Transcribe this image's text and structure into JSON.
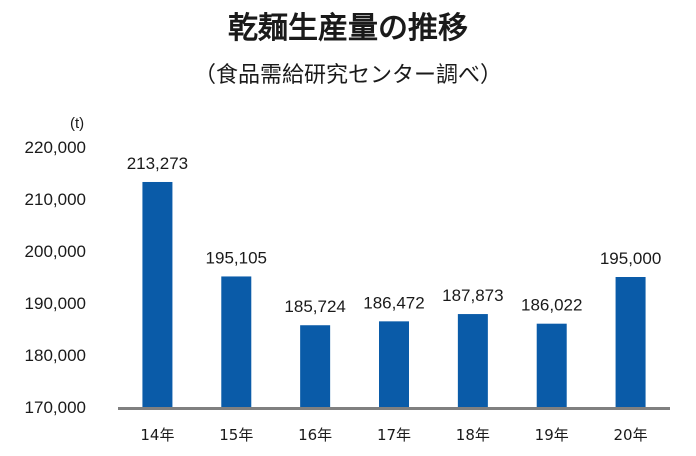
{
  "chart_data": {
    "type": "bar",
    "title": "乾麺生産量の推移",
    "subtitle": "（食品需給研究センター調べ）",
    "unit_label": "(t)",
    "categories": [
      "14年",
      "15年",
      "16年",
      "17年",
      "18年",
      "19年",
      "20年"
    ],
    "values": [
      213273,
      195105,
      185724,
      186472,
      187873,
      186022,
      195000
    ],
    "data_labels": [
      "213,273",
      "195,105",
      "185,724",
      "186,472",
      "187,873",
      "186,022",
      "195,000"
    ],
    "y_ticks": [
      170000,
      180000,
      190000,
      200000,
      210000,
      220000
    ],
    "y_tick_labels": [
      "170,000",
      "180,000",
      "190,000",
      "200,000",
      "210,000",
      "220,000"
    ],
    "ylim": [
      170000,
      220000
    ],
    "xlabel": "",
    "ylabel": "",
    "grid": false,
    "bar_color": "#0a5ba8",
    "axis_color": "#808080"
  }
}
